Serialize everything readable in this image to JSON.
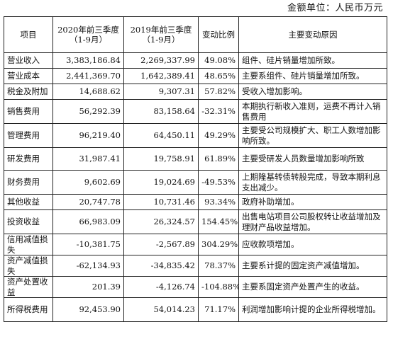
{
  "unit_note": "金额单位：人民币万元",
  "table": {
    "headers": {
      "item": "项目",
      "current_period": "2020年前三季度（1-9月）",
      "prior_period": "2019年前三季度（1-9月）",
      "change_ratio": "变动比例",
      "reason": "主要变动原因"
    },
    "rows": [
      {
        "item": "营业收入",
        "current": "3,383,186.84",
        "prior": "2,269,337.99",
        "change": "49.08%",
        "reason": "组件、硅片销量增加所致。"
      },
      {
        "item": "营业成本",
        "current": "2,441,369.70",
        "prior": "1,642,389.41",
        "change": "48.65%",
        "reason": "主要系组件、硅片销量增加所致。"
      },
      {
        "item": "税金及附加",
        "current": "14,688.62",
        "prior": "9,307.31",
        "change": "57.82%",
        "reason": "受收入增加影响。"
      },
      {
        "item": "销售费用",
        "current": "56,292.39",
        "prior": "83,158.64",
        "change": "-32.31%",
        "reason": "本期执行新收入准则，运费不再计入销售费用"
      },
      {
        "item": "管理费用",
        "current": "96,219.40",
        "prior": "64,450.11",
        "change": "49.29%",
        "reason": "主要受公司规模扩大、职工人数增加影响所致。"
      },
      {
        "item": "研发费用",
        "current": "31,987.41",
        "prior": "19,758.91",
        "change": "61.89%",
        "reason": "主要受研发人员数量增加影响所致"
      },
      {
        "item": "财务费用",
        "current": "9,602.69",
        "prior": "19,024.69",
        "change": "-49.53%",
        "reason": "上期隆基转债转股完成，导致本期利息支出减少。"
      },
      {
        "item": "其他收益",
        "current": "20,747.78",
        "prior": "10,731.46",
        "change": "93.34%",
        "reason": "政府补助增加。"
      },
      {
        "item": "投资收益",
        "current": "66,983.09",
        "prior": "26,324.57",
        "change": "154.45%",
        "reason": "出售电站项目公司股权转让收益增加及理财产品收益增加。"
      },
      {
        "item": "信用减值损失",
        "current": "-10,381.75",
        "prior": "-2,567.89",
        "change": "304.29%",
        "reason": "应收款项增加。"
      },
      {
        "item": "资产减值损失",
        "current": "-62,134.93",
        "prior": "-34,835.42",
        "change": "78.37%",
        "reason": "主要系计提的固定资产减值增加。"
      },
      {
        "item": "资产处置收益",
        "current": "201.39",
        "prior": "-4,126.74",
        "change": "-104.88%",
        "reason": "主要系固定资产处置产生的收益。"
      },
      {
        "item": "所得税费用",
        "current": "92,453.90",
        "prior": "54,014.23",
        "change": "71.17%",
        "reason": "利润增加影响计提的企业所得税增加。"
      }
    ]
  }
}
